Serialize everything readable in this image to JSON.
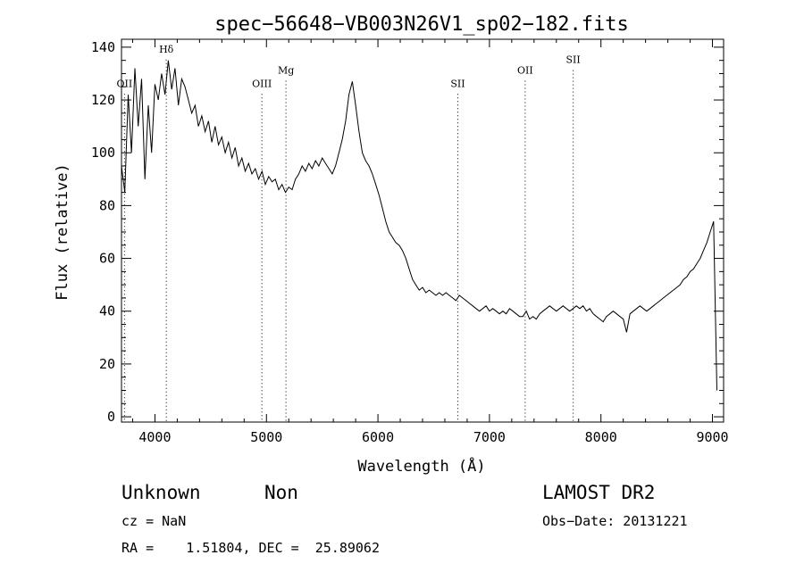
{
  "chart_data": {
    "type": "line",
    "title": "spec−56648−VB003N26V1_sp02−182.fits",
    "xlabel": "Wavelength (Å)",
    "ylabel": "Flux (relative)",
    "xlim": [
      3700,
      9100
    ],
    "ylim": [
      -2,
      143
    ],
    "xticks": [
      4000,
      5000,
      6000,
      7000,
      8000,
      9000
    ],
    "yticks": [
      0,
      20,
      40,
      60,
      80,
      100,
      120,
      140
    ],
    "grid": false,
    "lines": [
      {
        "label": "OII",
        "x": 3727,
        "label_y": 125
      },
      {
        "label": "Hδ",
        "x": 4102,
        "label_y": 138
      },
      {
        "label": "OIII",
        "x": 4959,
        "label_y": 125
      },
      {
        "label": "Mg",
        "x": 5175,
        "label_y": 130
      },
      {
        "label": "SII",
        "x": 6716,
        "label_y": 125
      },
      {
        "label": "OII",
        "x": 7320,
        "label_y": 130
      },
      {
        "label": "SII",
        "x": 7751,
        "label_y": 134
      }
    ],
    "series": [
      {
        "x": [
          3700,
          3730,
          3760,
          3790,
          3820,
          3850,
          3880,
          3910,
          3940,
          3970,
          4000,
          4030,
          4060,
          4090,
          4120,
          4150,
          4180,
          4210,
          4240,
          4270,
          4300,
          4330,
          4360,
          4390,
          4420,
          4450,
          4480,
          4510,
          4540,
          4570,
          4600,
          4630,
          4660,
          4690,
          4720,
          4750,
          4780,
          4810,
          4840,
          4870,
          4900,
          4930,
          4960,
          4990,
          5020,
          5050,
          5080,
          5110,
          5140,
          5170,
          5200,
          5230,
          5260,
          5290,
          5320,
          5350,
          5380,
          5410,
          5440,
          5470,
          5500,
          5530,
          5560,
          5590,
          5620,
          5650,
          5680,
          5710,
          5740,
          5770,
          5800,
          5830,
          5860,
          5890,
          5920,
          5950,
          5980,
          6010,
          6040,
          6070,
          6100,
          6130,
          6160,
          6190,
          6220,
          6250,
          6280,
          6310,
          6340,
          6370,
          6400,
          6430,
          6460,
          6490,
          6520,
          6550,
          6580,
          6610,
          6640,
          6670,
          6700,
          6730,
          6760,
          6790,
          6820,
          6850,
          6880,
          6910,
          6940,
          6970,
          7000,
          7030,
          7060,
          7090,
          7120,
          7150,
          7180,
          7210,
          7240,
          7270,
          7300,
          7330,
          7360,
          7390,
          7420,
          7450,
          7480,
          7510,
          7540,
          7570,
          7600,
          7630,
          7660,
          7690,
          7720,
          7750,
          7780,
          7810,
          7840,
          7870,
          7900,
          7930,
          7960,
          7990,
          8020,
          8050,
          8080,
          8110,
          8140,
          8170,
          8200,
          8230,
          8260,
          8290,
          8320,
          8350,
          8380,
          8410,
          8440,
          8470,
          8500,
          8530,
          8560,
          8590,
          8620,
          8650,
          8680,
          8710,
          8740,
          8770,
          8800,
          8830,
          8860,
          8890,
          8920,
          8950,
          8980,
          9010,
          9040
        ],
        "y": [
          95,
          85,
          122,
          100,
          132,
          110,
          128,
          90,
          118,
          100,
          126,
          120,
          130,
          122,
          135,
          124,
          132,
          118,
          128,
          125,
          120,
          115,
          118,
          110,
          114,
          108,
          112,
          104,
          110,
          103,
          106,
          100,
          104,
          98,
          102,
          95,
          98,
          93,
          96,
          92,
          94,
          90,
          93,
          88,
          91,
          89,
          90,
          86,
          88,
          85,
          87,
          86,
          90,
          92,
          95,
          93,
          96,
          94,
          97,
          95,
          98,
          96,
          94,
          92,
          95,
          100,
          105,
          112,
          122,
          127,
          118,
          108,
          100,
          97,
          95,
          92,
          88,
          84,
          79,
          74,
          70,
          68,
          66,
          65,
          63,
          60,
          56,
          52,
          50,
          48,
          49,
          47,
          48,
          47,
          46,
          47,
          46,
          47,
          46,
          45,
          44,
          46,
          45,
          44,
          43,
          42,
          41,
          40,
          41,
          42,
          40,
          41,
          40,
          39,
          40,
          39,
          41,
          40,
          39,
          38,
          38,
          40,
          37,
          38,
          37,
          39,
          40,
          41,
          42,
          41,
          40,
          41,
          42,
          41,
          40,
          41,
          42,
          41,
          42,
          40,
          41,
          39,
          38,
          37,
          36,
          38,
          39,
          40,
          39,
          38,
          37,
          32,
          39,
          40,
          41,
          42,
          41,
          40,
          41,
          42,
          43,
          44,
          45,
          46,
          47,
          48,
          49,
          50,
          52,
          53,
          55,
          56,
          58,
          60,
          63,
          66,
          70,
          74,
          10
        ]
      }
    ]
  },
  "footer": {
    "object_class": "Unknown",
    "subclass": "Non",
    "survey": "LAMOST DR2",
    "cz": "cz = NaN",
    "obs_date": "Obs−Date: 20131221",
    "coords": "RA =    1.51804, DEC =  25.89062"
  }
}
